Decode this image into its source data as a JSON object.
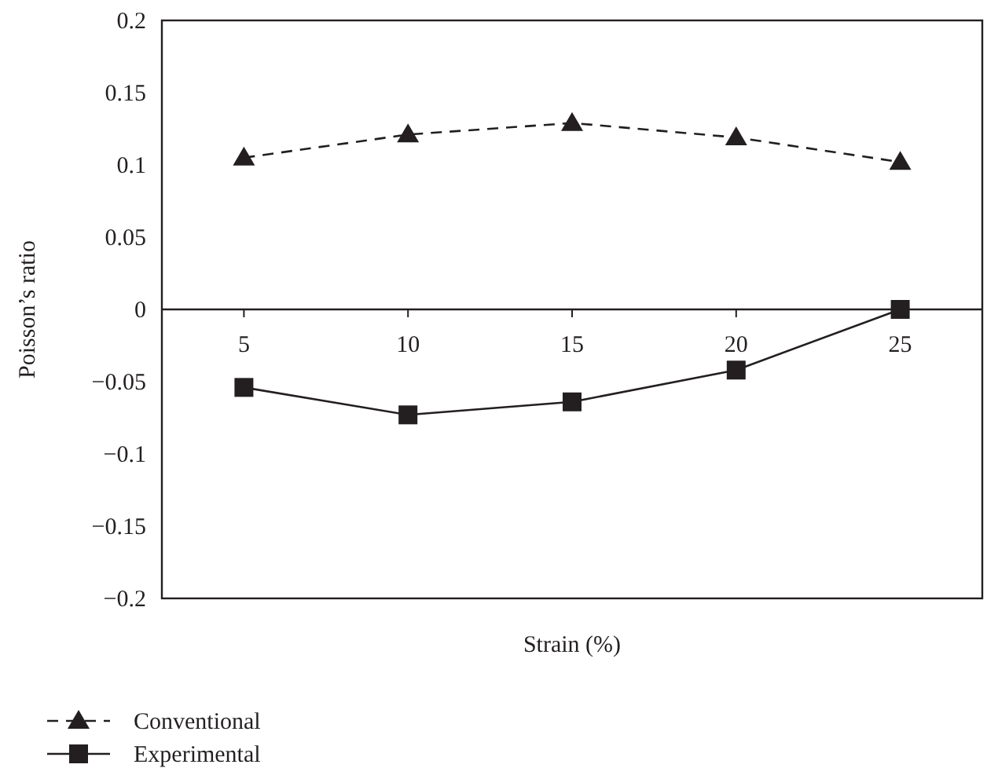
{
  "chart_data": {
    "type": "line",
    "xlabel": "Strain (%)",
    "ylabel": "Poisson’s ratio",
    "categories": [
      "5",
      "10",
      "15",
      "20",
      "25"
    ],
    "ylim": [
      -0.2,
      0.2
    ],
    "yticks": [
      {
        "value": -0.2,
        "label": "−0.2"
      },
      {
        "value": -0.15,
        "label": "−0.15"
      },
      {
        "value": -0.1,
        "label": "−0.1"
      },
      {
        "value": -0.05,
        "label": "−0.05"
      },
      0,
      0.05,
      0.1,
      0.15,
      0.2
    ],
    "grid": false,
    "legend": "bottom left",
    "series": [
      {
        "name": "Conventional",
        "color": "#231f20",
        "marker": "triangle",
        "line_style": "dashed",
        "values": [
          0.105,
          0.121,
          0.129,
          0.119,
          0.102
        ]
      },
      {
        "name": "Experimental",
        "color": "#231f20",
        "marker": "square",
        "line_style": "solid",
        "values": [
          -0.054,
          -0.073,
          -0.064,
          -0.042,
          0
        ]
      }
    ]
  }
}
